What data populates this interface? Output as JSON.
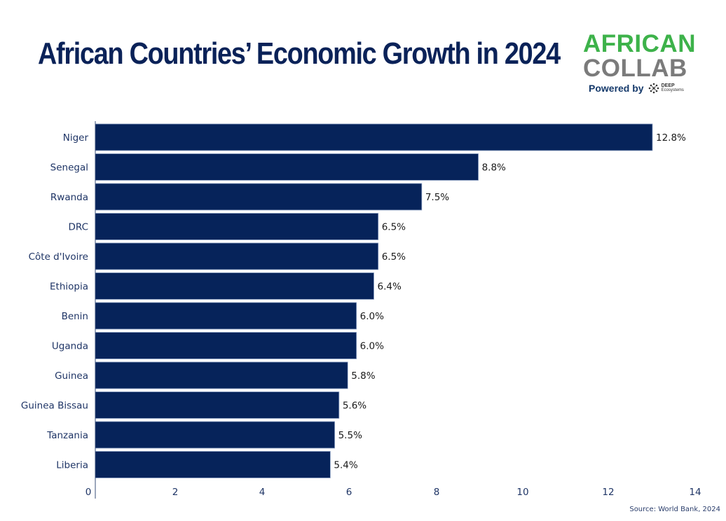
{
  "title": "African Countries’ Economic Growth in 2024",
  "logo": {
    "line1": "AFRICAN",
    "line2": "COLLAB",
    "powered_by": "Powered by",
    "partner_line1": "DEEP",
    "partner_line2": "Ecosystems",
    "colors": {
      "green": "#3db24a",
      "gray": "#7b7b7b",
      "navy": "#163a6b"
    }
  },
  "source": "Source: World Bank, 2024",
  "chart_data": {
    "type": "bar",
    "orientation": "horizontal",
    "title": "African Countries’ Economic Growth in 2024",
    "xlabel": "",
    "ylabel": "",
    "categories": [
      "Niger",
      "Senegal",
      "Rwanda",
      "DRC",
      "Côte d'Ivoire",
      "Ethiopia",
      "Benin",
      "Uganda",
      "Guinea",
      "Guinea Bissau",
      "Tanzania",
      "Liberia"
    ],
    "values": [
      12.8,
      8.8,
      7.5,
      6.5,
      6.5,
      6.4,
      6.0,
      6.0,
      5.8,
      5.6,
      5.5,
      5.4
    ],
    "data_labels": [
      "12.8%",
      "8.8%",
      "7.5%",
      "6.5%",
      "6.5%",
      "6.4%",
      "6.0%",
      "6.0%",
      "5.8%",
      "5.6%",
      "5.5%",
      "5.4%"
    ],
    "xlim": [
      0,
      14
    ],
    "xticks": [
      0,
      2,
      4,
      6,
      8,
      10,
      12,
      14
    ],
    "grid": false,
    "legend": "none",
    "bar_color": "#06235a",
    "text_color": "#1f3566"
  }
}
